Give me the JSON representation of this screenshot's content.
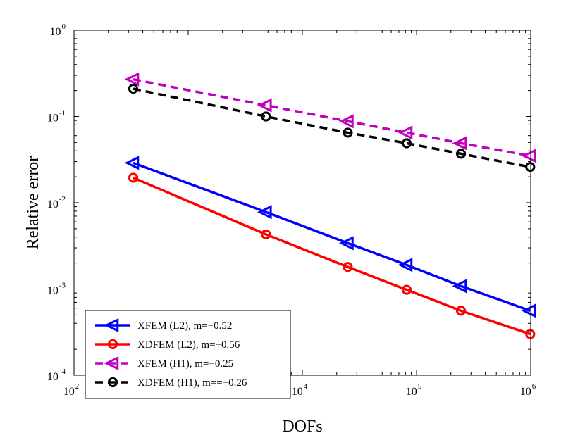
{
  "chart_data": {
    "type": "line",
    "xscale": "log",
    "yscale": "log",
    "xlim": [
      100,
      1000000
    ],
    "ylim": [
      0.0001,
      1
    ],
    "xlabel": "DOFs",
    "ylabel": "Relative error",
    "grid": false,
    "legend_position": "bottom-left",
    "x_ticks": [
      {
        "base": "10",
        "exp": "2"
      },
      {
        "base": "10",
        "exp": "3"
      },
      {
        "base": "10",
        "exp": "4"
      },
      {
        "base": "10",
        "exp": "5"
      },
      {
        "base": "10",
        "exp": "6"
      }
    ],
    "y_ticks": [
      {
        "base": "10",
        "exp": "0"
      },
      {
        "base": "10",
        "exp": "-1"
      },
      {
        "base": "10",
        "exp": "-2"
      },
      {
        "base": "10",
        "exp": "-3"
      },
      {
        "base": "10",
        "exp": "-4"
      }
    ],
    "series": [
      {
        "name": "XFEM (L2), m=−0.52",
        "color": "#0000ff",
        "line": "solid",
        "marker": "triangle-left",
        "x": [
          330,
          4800,
          25000,
          82000,
          245000,
          990000
        ],
        "y": [
          0.029,
          0.0078,
          0.0034,
          0.0019,
          0.00108,
          0.00056
        ]
      },
      {
        "name": "XDFEM (L2), m=−0.56",
        "color": "#ff0000",
        "line": "solid",
        "marker": "circle",
        "x": [
          330,
          4800,
          25000,
          82000,
          245000,
          990000
        ],
        "y": [
          0.0195,
          0.0043,
          0.0018,
          0.00098,
          0.00056,
          0.0003
        ]
      },
      {
        "name": "XFEM (H1), m=−0.25",
        "color": "#bf00bf",
        "line": "dashed",
        "marker": "triangle-left",
        "x": [
          330,
          4800,
          25000,
          82000,
          245000,
          990000
        ],
        "y": [
          0.27,
          0.135,
          0.088,
          0.065,
          0.049,
          0.035
        ]
      },
      {
        "name": "XDFEM (H1), m==−0.26",
        "color": "#000000",
        "line": "dashed",
        "marker": "circle",
        "x": [
          330,
          4800,
          25000,
          82000,
          245000,
          990000
        ],
        "y": [
          0.21,
          0.1,
          0.065,
          0.049,
          0.037,
          0.026
        ]
      }
    ]
  }
}
